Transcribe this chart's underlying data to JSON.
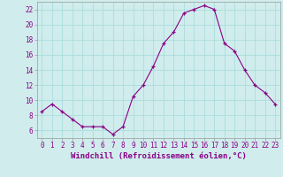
{
  "hours": [
    0,
    1,
    2,
    3,
    4,
    5,
    6,
    7,
    8,
    9,
    10,
    11,
    12,
    13,
    14,
    15,
    16,
    17,
    18,
    19,
    20,
    21,
    22,
    23
  ],
  "values": [
    8.5,
    9.5,
    8.5,
    7.5,
    6.5,
    6.5,
    6.5,
    5.5,
    6.5,
    10.5,
    12.0,
    14.5,
    17.5,
    19.0,
    21.5,
    22.0,
    22.5,
    22.0,
    17.5,
    16.5,
    14.0,
    12.0,
    11.0,
    9.5
  ],
  "line_color": "#880088",
  "marker": "+",
  "bg_color": "#d0ecec",
  "grid_color": "#aadddd",
  "xlabel": "Windchill (Refroidissement éolien,°C)",
  "ylim": [
    5.0,
    23.0
  ],
  "xlim": [
    -0.5,
    23.5
  ],
  "yticks": [
    6,
    8,
    10,
    12,
    14,
    16,
    18,
    20,
    22
  ],
  "xticks": [
    0,
    1,
    2,
    3,
    4,
    5,
    6,
    7,
    8,
    9,
    10,
    11,
    12,
    13,
    14,
    15,
    16,
    17,
    18,
    19,
    20,
    21,
    22,
    23
  ],
  "label_color": "#880088",
  "tick_fontsize": 5.5,
  "xlabel_fontsize": 6.5
}
